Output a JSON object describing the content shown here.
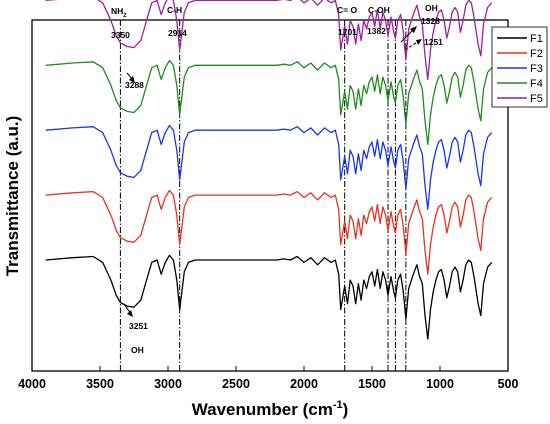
{
  "chart_data": {
    "type": "line",
    "title": "",
    "xlabel": "Wavenumber (cm",
    "xlabel_sup": "-1",
    "xlabel_tail": ")",
    "ylabel": "Transmittance (a.u.)",
    "xlim": [
      4000,
      500
    ],
    "xticks": [
      "4000",
      "3500",
      "3000",
      "2500",
      "2000",
      "1500",
      "1000",
      "500"
    ],
    "grid": false,
    "y_tick_labels": false,
    "legend_position": "top-right",
    "annotations": {
      "nh2": "NH",
      "nh2_sub": "2",
      "nh2_wn": "3350",
      "ch": "C-H",
      "ch_wn": "2914",
      "co": "C= O",
      "co_wn": "1701",
      "coh": "C-OH",
      "coh_wn": "1382",
      "oh_top": "OH",
      "oh_top_wn": "1328",
      "wn_1251": "1251",
      "wn_3288": "3288",
      "wn_3251": "3251",
      "oh_bottom": "OH"
    },
    "reference_lines": [
      3350,
      2914,
      1701,
      1382,
      1328,
      1251
    ],
    "series": [
      {
        "name": "F1",
        "color": "#000000",
        "offset": 0.0
      },
      {
        "name": "F2",
        "color": "#e8321e",
        "offset": 0.55
      },
      {
        "name": "F3",
        "color": "#1a37e6",
        "offset": 1.1
      },
      {
        "name": "F4",
        "color": "#1e8c1e",
        "offset": 1.65
      },
      {
        "name": "F5",
        "color": "#9b1fa0",
        "offset": 2.2
      }
    ],
    "x": [
      3900,
      3700,
      3550,
      3480,
      3420,
      3380,
      3350,
      3300,
      3251,
      3200,
      3150,
      3120,
      3080,
      3050,
      3020,
      2990,
      2960,
      2935,
      2914,
      2880,
      2850,
      2800,
      2700,
      2500,
      2300,
      2200,
      2150,
      2100,
      2050,
      2000,
      1950,
      1900,
      1850,
      1800,
      1770,
      1745,
      1730,
      1701,
      1680,
      1660,
      1640,
      1620,
      1600,
      1580,
      1560,
      1540,
      1520,
      1500,
      1480,
      1460,
      1440,
      1420,
      1400,
      1382,
      1360,
      1340,
      1328,
      1310,
      1290,
      1270,
      1251,
      1230,
      1210,
      1190,
      1170,
      1150,
      1130,
      1110,
      1090,
      1070,
      1050,
      1030,
      1010,
      990,
      970,
      950,
      930,
      910,
      890,
      870,
      850,
      830,
      810,
      790,
      770,
      750,
      720,
      700,
      680,
      650,
      620
    ],
    "base_values": [
      0.72,
      0.74,
      0.75,
      0.7,
      0.55,
      0.42,
      0.36,
      0.33,
      0.32,
      0.38,
      0.58,
      0.7,
      0.72,
      0.6,
      0.7,
      0.76,
      0.72,
      0.55,
      0.3,
      0.62,
      0.7,
      0.72,
      0.72,
      0.72,
      0.72,
      0.72,
      0.73,
      0.72,
      0.75,
      0.7,
      0.74,
      0.68,
      0.74,
      0.7,
      0.72,
      0.6,
      0.3,
      0.5,
      0.35,
      0.55,
      0.5,
      0.35,
      0.52,
      0.38,
      0.55,
      0.48,
      0.58,
      0.62,
      0.5,
      0.64,
      0.48,
      0.62,
      0.55,
      0.42,
      0.58,
      0.45,
      0.4,
      0.55,
      0.6,
      0.45,
      0.22,
      0.48,
      0.55,
      0.62,
      0.68,
      0.58,
      0.52,
      0.25,
      0.05,
      0.3,
      0.45,
      0.55,
      0.62,
      0.64,
      0.55,
      0.4,
      0.5,
      0.62,
      0.66,
      0.62,
      0.45,
      0.55,
      0.68,
      0.72,
      0.7,
      0.58,
      0.35,
      0.25,
      0.52,
      0.66,
      0.7
    ]
  },
  "legend": {
    "items": [
      "F1",
      "F2",
      "F3",
      "F4",
      "F5"
    ]
  }
}
